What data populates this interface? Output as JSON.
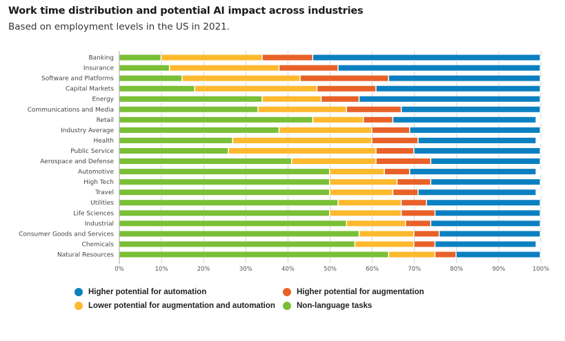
{
  "chart_data": {
    "type": "bar",
    "orientation": "horizontal",
    "stacked": true,
    "title": "Work time distribution and potential AI impact across industries",
    "subtitle": "Based on employment levels in the US in 2021.",
    "xlabel": "",
    "ylabel": "",
    "xlim": [
      0,
      100
    ],
    "x_unit": "%",
    "x_ticks": [
      "0%",
      "10%",
      "20%",
      "30%",
      "40%",
      "50%",
      "60%",
      "70%",
      "80%",
      "90%",
      "100%"
    ],
    "grid": "vertical dashed",
    "legend_position": "bottom",
    "categories": [
      "Banking",
      "Insurance",
      "Software and Platforms",
      "Capital Markets",
      "Energy",
      "Communications and Media",
      "Retail",
      "Industry Average",
      "Health",
      "Public Service",
      "Aerospace and Defense",
      "Automotive",
      "High Tech",
      "Travel",
      "Utilities",
      "Life Sciences",
      "Industrial",
      "Consumer Goods and Services",
      "Chemicals",
      "Natural Resources"
    ],
    "series": [
      {
        "name": "Non-language tasks",
        "color": "#7abf36",
        "values": [
          10,
          12,
          15,
          18,
          34,
          33,
          46,
          38,
          27,
          26,
          41,
          50,
          50,
          50,
          52,
          50,
          54,
          57,
          56,
          64
        ]
      },
      {
        "name": "Lower potential for augmentation and automation",
        "color": "#fdb92e",
        "values": [
          24,
          26,
          28,
          29,
          14,
          21,
          12,
          22,
          33,
          35,
          20,
          13,
          16,
          15,
          15,
          17,
          14,
          13,
          14,
          11
        ]
      },
      {
        "name": "Higher potential for augmentation",
        "color": "#e86128",
        "values": [
          12,
          14,
          21,
          14,
          9,
          13,
          7,
          9,
          11,
          9,
          13,
          6,
          8,
          6,
          6,
          8,
          6,
          6,
          5,
          5
        ]
      },
      {
        "name": "Higher potential for automation",
        "color": "#0b80c0",
        "values": [
          54,
          48,
          36,
          39,
          43,
          33,
          34,
          31,
          28,
          30,
          26,
          30,
          26,
          28,
          27,
          25,
          26,
          24,
          24,
          20
        ]
      }
    ]
  },
  "legend": [
    {
      "label": "Higher potential for automation",
      "color": "#0b80c0"
    },
    {
      "label": "Higher potential for augmentation",
      "color": "#e86128"
    },
    {
      "label": "Lower potential for augmentation and automation",
      "color": "#fdb92e"
    },
    {
      "label": "Non-language tasks",
      "color": "#7abf36"
    }
  ]
}
